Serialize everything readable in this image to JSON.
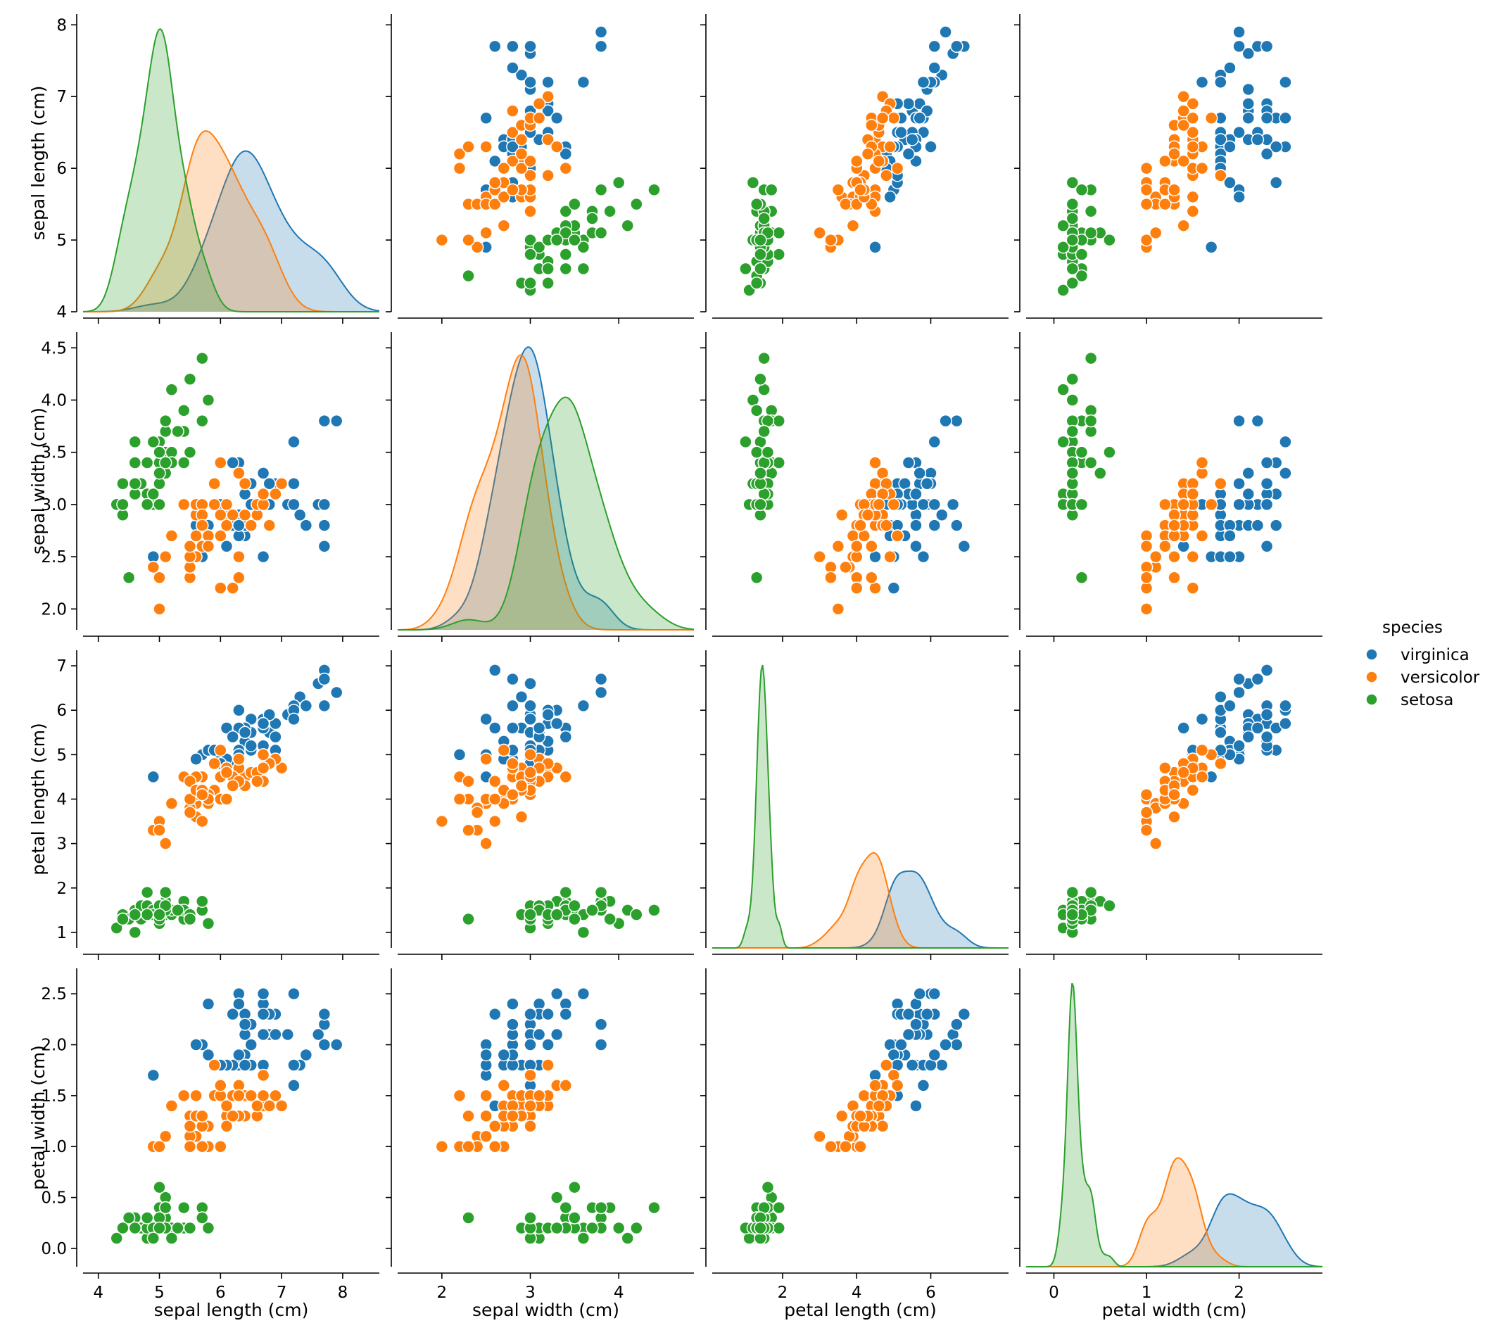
{
  "chart_data": {
    "type": "scatter",
    "kind": "pairplot",
    "variables": [
      "sepal length (cm)",
      "sepal width (cm)",
      "petal length (cm)",
      "petal width (cm)"
    ],
    "diagonal": "kde",
    "hue": "species",
    "legend": {
      "title": "species",
      "placement": "right",
      "entries": [
        {
          "name": "virginica",
          "color": "#1f77b4"
        },
        {
          "name": "versicolor",
          "color": "#ff7f0e"
        },
        {
          "name": "setosa",
          "color": "#2ca02c"
        }
      ]
    },
    "axes": [
      {
        "name": "sepal length (cm)",
        "range": [
          3.75,
          8.6
        ],
        "ticks": [
          4,
          5,
          6,
          7,
          8
        ],
        "row_range": [
          4.0,
          8.15
        ],
        "row_ticks": [
          4,
          5,
          6,
          7,
          8
        ]
      },
      {
        "name": "sepal width (cm)",
        "range": [
          1.5,
          4.85
        ],
        "ticks": [
          2,
          3,
          4
        ],
        "row_range": [
          1.8,
          4.65
        ],
        "row_ticks": [
          2.0,
          2.5,
          3.0,
          3.5,
          4.0,
          4.5
        ]
      },
      {
        "name": "petal length (cm)",
        "range": [
          0.1,
          8.1
        ],
        "ticks": [
          2,
          4,
          6
        ],
        "row_range": [
          0.65,
          7.35
        ],
        "row_ticks": [
          1,
          2,
          3,
          4,
          5,
          6,
          7
        ]
      },
      {
        "name": "petal width (cm)",
        "range": [
          -0.3,
          2.9
        ],
        "ticks": [
          0,
          1,
          2
        ],
        "row_range": [
          -0.18,
          2.75
        ],
        "row_ticks": [
          0.0,
          0.5,
          1.0,
          1.5,
          2.0,
          2.5
        ]
      }
    ],
    "species": [
      {
        "name": "virginica",
        "color": "#1f77b4",
        "points": [
          [
            6.3,
            3.3,
            6.0,
            2.5
          ],
          [
            5.8,
            2.7,
            5.1,
            1.9
          ],
          [
            7.1,
            3.0,
            5.9,
            2.1
          ],
          [
            6.3,
            2.9,
            5.6,
            1.8
          ],
          [
            6.5,
            3.0,
            5.8,
            2.2
          ],
          [
            7.6,
            3.0,
            6.6,
            2.1
          ],
          [
            4.9,
            2.5,
            4.5,
            1.7
          ],
          [
            7.3,
            2.9,
            6.3,
            1.8
          ],
          [
            6.7,
            2.5,
            5.8,
            1.8
          ],
          [
            7.2,
            3.6,
            6.1,
            2.5
          ],
          [
            6.5,
            3.2,
            5.1,
            2.0
          ],
          [
            6.4,
            2.7,
            5.3,
            1.9
          ],
          [
            6.8,
            3.0,
            5.5,
            2.1
          ],
          [
            5.7,
            2.5,
            5.0,
            2.0
          ],
          [
            5.8,
            2.8,
            5.1,
            2.4
          ],
          [
            6.4,
            3.2,
            5.3,
            2.3
          ],
          [
            6.5,
            3.0,
            5.5,
            1.8
          ],
          [
            7.7,
            3.8,
            6.7,
            2.2
          ],
          [
            7.7,
            2.6,
            6.9,
            2.3
          ],
          [
            6.0,
            2.2,
            5.0,
            1.5
          ],
          [
            6.9,
            3.2,
            5.7,
            2.3
          ],
          [
            5.6,
            2.8,
            4.9,
            2.0
          ],
          [
            7.7,
            2.8,
            6.7,
            2.0
          ],
          [
            6.3,
            2.7,
            4.9,
            1.8
          ],
          [
            6.7,
            3.3,
            5.7,
            2.1
          ],
          [
            7.2,
            3.2,
            6.0,
            1.8
          ],
          [
            6.2,
            2.8,
            4.8,
            1.8
          ],
          [
            6.1,
            3.0,
            4.9,
            1.8
          ],
          [
            6.4,
            2.8,
            5.6,
            2.1
          ],
          [
            7.2,
            3.0,
            5.8,
            1.6
          ],
          [
            7.4,
            2.8,
            6.1,
            1.9
          ],
          [
            7.9,
            3.8,
            6.4,
            2.0
          ],
          [
            6.4,
            2.8,
            5.6,
            2.2
          ],
          [
            6.3,
            2.8,
            5.1,
            1.5
          ],
          [
            6.1,
            2.6,
            5.6,
            1.4
          ],
          [
            7.7,
            3.0,
            6.1,
            2.3
          ],
          [
            6.3,
            3.4,
            5.6,
            2.4
          ],
          [
            6.4,
            3.1,
            5.5,
            1.8
          ],
          [
            6.0,
            3.0,
            4.8,
            1.8
          ],
          [
            6.9,
            3.1,
            5.4,
            2.1
          ],
          [
            6.7,
            3.1,
            5.6,
            2.4
          ],
          [
            6.9,
            3.1,
            5.1,
            2.3
          ],
          [
            5.8,
            2.7,
            5.1,
            1.9
          ],
          [
            6.8,
            3.2,
            5.9,
            2.3
          ],
          [
            6.7,
            3.3,
            5.7,
            2.5
          ],
          [
            6.7,
            3.0,
            5.2,
            2.3
          ],
          [
            6.3,
            2.5,
            5.0,
            1.9
          ],
          [
            6.5,
            3.0,
            5.2,
            2.0
          ],
          [
            6.2,
            3.4,
            5.4,
            2.3
          ],
          [
            5.9,
            3.0,
            5.1,
            1.8
          ]
        ]
      },
      {
        "name": "versicolor",
        "color": "#ff7f0e",
        "points": [
          [
            7.0,
            3.2,
            4.7,
            1.4
          ],
          [
            6.4,
            3.2,
            4.5,
            1.5
          ],
          [
            6.9,
            3.1,
            4.9,
            1.5
          ],
          [
            5.5,
            2.3,
            4.0,
            1.3
          ],
          [
            6.5,
            2.8,
            4.6,
            1.5
          ],
          [
            5.7,
            2.8,
            4.5,
            1.3
          ],
          [
            6.3,
            3.3,
            4.7,
            1.6
          ],
          [
            4.9,
            2.4,
            3.3,
            1.0
          ],
          [
            6.6,
            2.9,
            4.6,
            1.3
          ],
          [
            5.2,
            2.7,
            3.9,
            1.4
          ],
          [
            5.0,
            2.0,
            3.5,
            1.0
          ],
          [
            5.9,
            3.0,
            4.2,
            1.5
          ],
          [
            6.0,
            2.2,
            4.0,
            1.0
          ],
          [
            6.1,
            2.9,
            4.7,
            1.4
          ],
          [
            5.6,
            2.9,
            3.6,
            1.3
          ],
          [
            6.7,
            3.1,
            4.4,
            1.4
          ],
          [
            5.6,
            3.0,
            4.5,
            1.5
          ],
          [
            5.8,
            2.7,
            4.1,
            1.0
          ],
          [
            6.2,
            2.2,
            4.5,
            1.5
          ],
          [
            5.6,
            2.5,
            3.9,
            1.1
          ],
          [
            5.9,
            3.2,
            4.8,
            1.8
          ],
          [
            6.1,
            2.8,
            4.0,
            1.3
          ],
          [
            6.3,
            2.5,
            4.9,
            1.5
          ],
          [
            6.1,
            2.8,
            4.7,
            1.2
          ],
          [
            6.4,
            2.9,
            4.3,
            1.3
          ],
          [
            6.6,
            3.0,
            4.4,
            1.4
          ],
          [
            6.8,
            2.8,
            4.8,
            1.4
          ],
          [
            6.7,
            3.0,
            5.0,
            1.7
          ],
          [
            6.0,
            2.9,
            4.5,
            1.5
          ],
          [
            5.7,
            2.6,
            3.5,
            1.0
          ],
          [
            5.5,
            2.4,
            3.8,
            1.1
          ],
          [
            5.5,
            2.4,
            3.7,
            1.0
          ],
          [
            5.8,
            2.7,
            3.9,
            1.2
          ],
          [
            6.0,
            2.7,
            5.1,
            1.6
          ],
          [
            5.4,
            3.0,
            4.5,
            1.5
          ],
          [
            6.0,
            3.4,
            4.5,
            1.6
          ],
          [
            6.7,
            3.1,
            4.7,
            1.5
          ],
          [
            6.3,
            2.3,
            4.4,
            1.3
          ],
          [
            5.6,
            3.0,
            4.1,
            1.3
          ],
          [
            5.5,
            2.5,
            4.0,
            1.3
          ],
          [
            5.5,
            2.6,
            4.4,
            1.2
          ],
          [
            6.1,
            3.0,
            4.6,
            1.4
          ],
          [
            5.8,
            2.6,
            4.0,
            1.2
          ],
          [
            5.0,
            2.3,
            3.3,
            1.0
          ],
          [
            5.6,
            2.7,
            4.2,
            1.3
          ],
          [
            5.7,
            3.0,
            4.2,
            1.2
          ],
          [
            5.7,
            2.9,
            4.2,
            1.3
          ],
          [
            6.2,
            2.9,
            4.3,
            1.3
          ],
          [
            5.1,
            2.5,
            3.0,
            1.1
          ],
          [
            5.7,
            2.8,
            4.1,
            1.3
          ]
        ]
      },
      {
        "name": "setosa",
        "color": "#2ca02c",
        "points": [
          [
            5.1,
            3.5,
            1.4,
            0.2
          ],
          [
            4.9,
            3.0,
            1.4,
            0.2
          ],
          [
            4.7,
            3.2,
            1.3,
            0.2
          ],
          [
            4.6,
            3.1,
            1.5,
            0.2
          ],
          [
            5.0,
            3.6,
            1.4,
            0.2
          ],
          [
            5.4,
            3.9,
            1.7,
            0.4
          ],
          [
            4.6,
            3.4,
            1.4,
            0.3
          ],
          [
            5.0,
            3.4,
            1.5,
            0.2
          ],
          [
            4.4,
            2.9,
            1.4,
            0.2
          ],
          [
            4.9,
            3.1,
            1.5,
            0.1
          ],
          [
            5.4,
            3.7,
            1.5,
            0.2
          ],
          [
            4.8,
            3.4,
            1.6,
            0.2
          ],
          [
            4.8,
            3.0,
            1.4,
            0.1
          ],
          [
            4.3,
            3.0,
            1.1,
            0.1
          ],
          [
            5.8,
            4.0,
            1.2,
            0.2
          ],
          [
            5.7,
            4.4,
            1.5,
            0.4
          ],
          [
            5.4,
            3.9,
            1.3,
            0.4
          ],
          [
            5.1,
            3.5,
            1.4,
            0.3
          ],
          [
            5.7,
            3.8,
            1.7,
            0.3
          ],
          [
            5.1,
            3.8,
            1.5,
            0.3
          ],
          [
            5.4,
            3.4,
            1.7,
            0.2
          ],
          [
            5.1,
            3.7,
            1.5,
            0.4
          ],
          [
            4.6,
            3.6,
            1.0,
            0.2
          ],
          [
            5.1,
            3.3,
            1.7,
            0.5
          ],
          [
            4.8,
            3.4,
            1.9,
            0.2
          ],
          [
            5.0,
            3.0,
            1.6,
            0.2
          ],
          [
            5.0,
            3.4,
            1.6,
            0.4
          ],
          [
            5.2,
            3.5,
            1.5,
            0.2
          ],
          [
            5.2,
            3.4,
            1.4,
            0.2
          ],
          [
            4.7,
            3.2,
            1.6,
            0.2
          ],
          [
            4.8,
            3.1,
            1.6,
            0.2
          ],
          [
            5.4,
            3.4,
            1.5,
            0.4
          ],
          [
            5.2,
            4.1,
            1.5,
            0.1
          ],
          [
            5.5,
            4.2,
            1.4,
            0.2
          ],
          [
            4.9,
            3.1,
            1.5,
            0.2
          ],
          [
            5.0,
            3.2,
            1.2,
            0.2
          ],
          [
            5.5,
            3.5,
            1.3,
            0.2
          ],
          [
            4.9,
            3.6,
            1.4,
            0.1
          ],
          [
            4.4,
            3.0,
            1.3,
            0.2
          ],
          [
            5.1,
            3.4,
            1.5,
            0.2
          ],
          [
            5.0,
            3.5,
            1.3,
            0.3
          ],
          [
            4.5,
            2.3,
            1.3,
            0.3
          ],
          [
            4.4,
            3.2,
            1.3,
            0.2
          ],
          [
            5.0,
            3.5,
            1.6,
            0.6
          ],
          [
            5.1,
            3.8,
            1.9,
            0.4
          ],
          [
            4.8,
            3.0,
            1.4,
            0.3
          ],
          [
            5.1,
            3.8,
            1.6,
            0.2
          ],
          [
            4.6,
            3.2,
            1.4,
            0.2
          ],
          [
            5.3,
            3.7,
            1.5,
            0.2
          ],
          [
            5.0,
            3.3,
            1.4,
            0.2
          ]
        ]
      }
    ]
  }
}
